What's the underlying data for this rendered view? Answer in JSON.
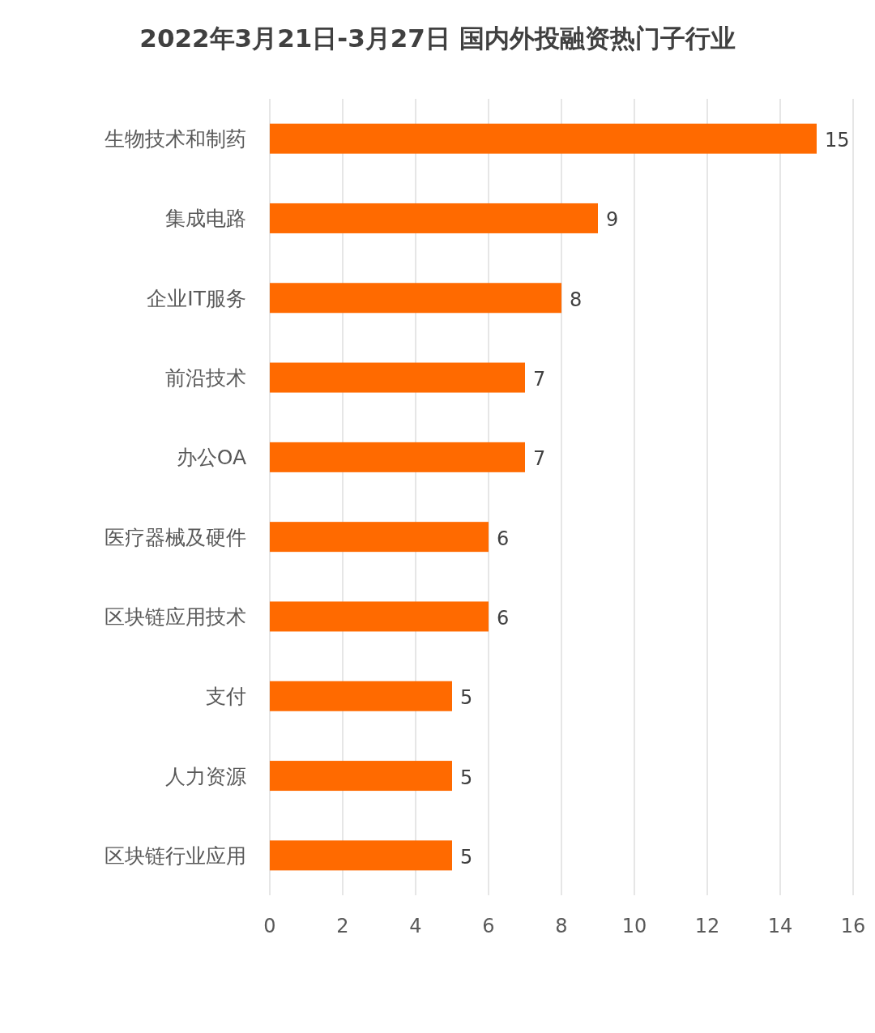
{
  "chart_data": {
    "type": "bar",
    "orientation": "horizontal",
    "title": "2022年3月21日-3月27日 国内外投融资热门子行业",
    "categories": [
      "生物技术和制药",
      "集成电路",
      "企业IT服务",
      "前沿技术",
      "办公OA",
      "医疗器械及硬件",
      "区块链应用技术",
      "支付",
      "人力资源",
      "区块链行业应用"
    ],
    "values": [
      15,
      9,
      8,
      7,
      7,
      6,
      6,
      5,
      5,
      5
    ],
    "color": "#ff6a00",
    "xlim": [
      0,
      16
    ],
    "xticks": [
      0,
      2,
      4,
      6,
      8,
      10,
      12,
      14,
      16
    ],
    "grid": "x",
    "data_labels": true
  }
}
